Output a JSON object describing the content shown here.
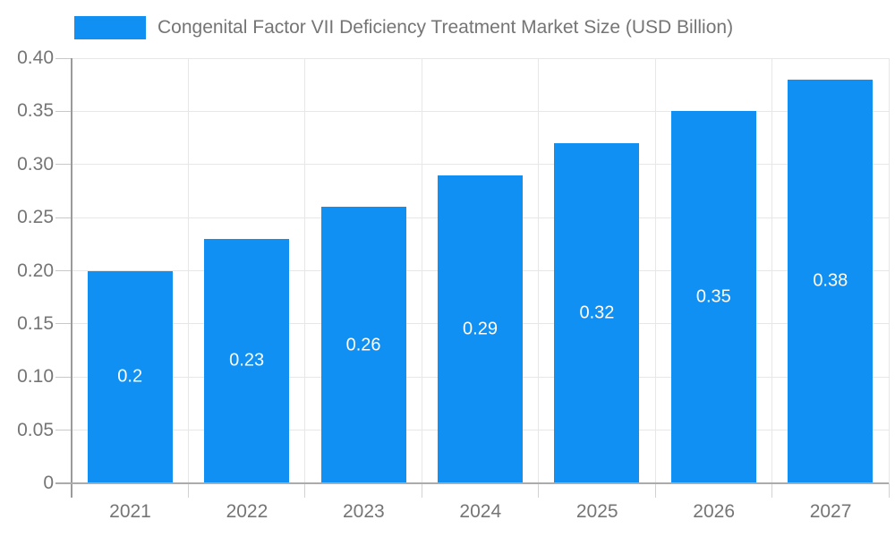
{
  "legend": {
    "label": "Congenital Factor VII Deficiency Treatment Market Size (USD Billion)"
  },
  "chart_data": {
    "type": "bar",
    "title": "Congenital Factor VII Deficiency Treatment Market Size (USD Billion)",
    "categories": [
      "2021",
      "2022",
      "2023",
      "2024",
      "2025",
      "2026",
      "2027"
    ],
    "values": [
      0.2,
      0.23,
      0.26,
      0.29,
      0.32,
      0.35,
      0.38
    ],
    "value_labels": [
      "0.2",
      "0.23",
      "0.26",
      "0.29",
      "0.32",
      "0.35",
      "0.38"
    ],
    "xlabel": "",
    "ylabel": "",
    "ylim": [
      0,
      0.4
    ],
    "y_ticks": [
      0,
      0.05,
      0.1,
      0.15,
      0.2,
      0.25,
      0.3,
      0.35,
      0.4
    ],
    "y_tick_labels": [
      "0",
      "0.05",
      "0.10",
      "0.15",
      "0.20",
      "0.25",
      "0.30",
      "0.35",
      "0.40"
    ],
    "grid": true,
    "legend_position": "top-left",
    "colors": {
      "bar": "#0f90f2",
      "bar_value_text": "#ffffff",
      "axis_text": "#757575",
      "gridline": "#e7e7e7",
      "axis_line": "#9a9a9a"
    }
  }
}
